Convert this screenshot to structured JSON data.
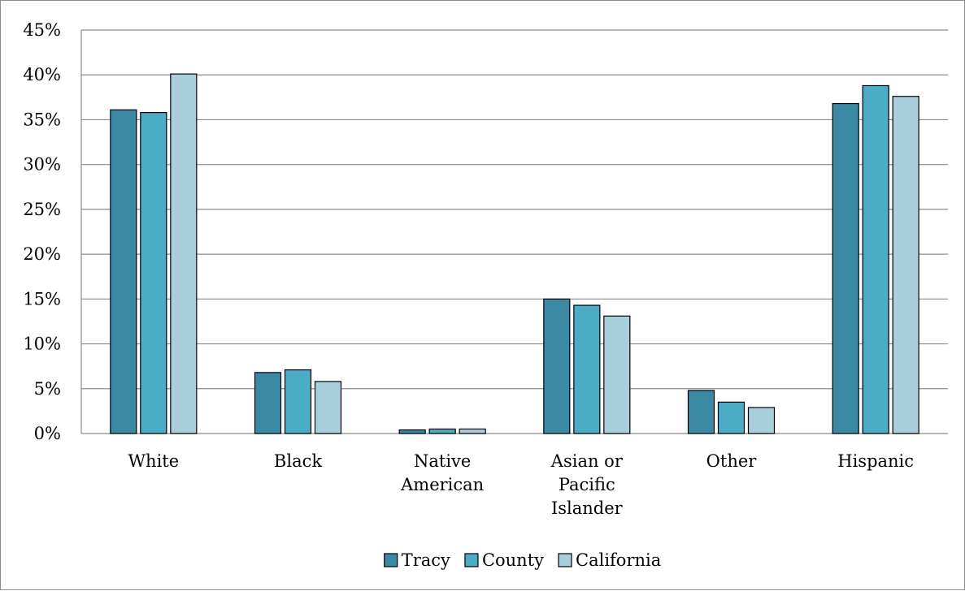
{
  "chart_data": {
    "type": "bar",
    "categories": [
      [
        "White"
      ],
      [
        "Black"
      ],
      [
        "Native",
        "American"
      ],
      [
        "Asian or",
        "Pacific",
        "Islander"
      ],
      [
        "Other"
      ],
      [
        "Hispanic"
      ]
    ],
    "series": [
      {
        "name": "Tracy",
        "color": "#3a8aa5",
        "values": [
          36.1,
          6.8,
          0.4,
          15.0,
          4.8,
          36.8
        ]
      },
      {
        "name": "County",
        "color": "#4bacc6",
        "values": [
          35.8,
          7.1,
          0.5,
          14.3,
          3.5,
          38.8
        ]
      },
      {
        "name": "California",
        "color": "#a9cfdd",
        "values": [
          40.1,
          5.8,
          0.5,
          13.1,
          2.9,
          37.6
        ]
      }
    ],
    "y_ticks": [
      "0%",
      "5%",
      "10%",
      "15%",
      "20%",
      "25%",
      "30%",
      "35%",
      "40%",
      "45%"
    ],
    "ylim": [
      0,
      45
    ],
    "grid": true,
    "legend_position": "bottom",
    "title": "",
    "xlabel": "",
    "ylabel": ""
  }
}
